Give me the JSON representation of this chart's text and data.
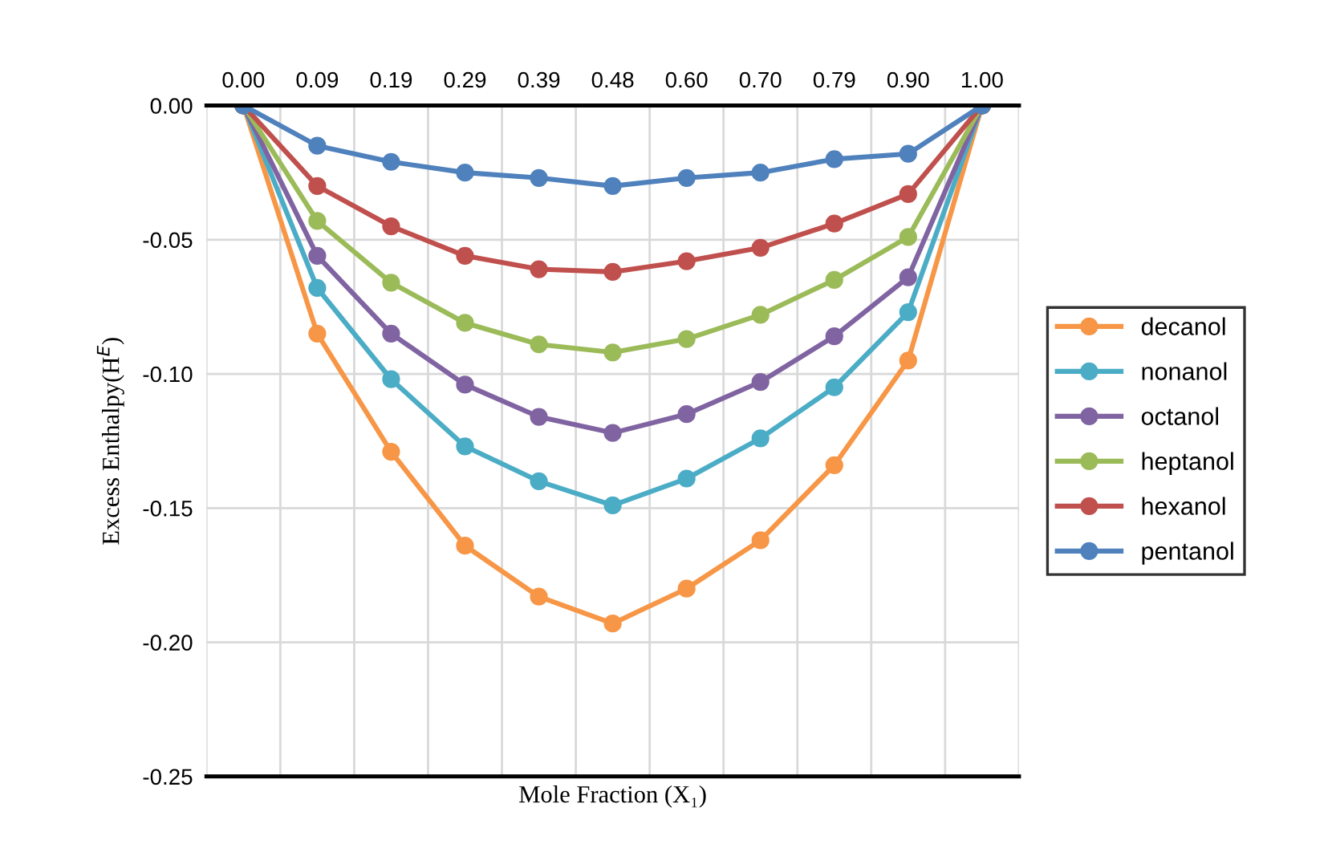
{
  "chart_data": {
    "type": "line",
    "xlabel": "Mole Fraction (X₁)",
    "ylabel": "Excess Enthalpy(H$^{E}$)",
    "categories": [
      "0.00",
      "0.09",
      "0.19",
      "0.29",
      "0.39",
      "0.48",
      "0.60",
      "0.70",
      "0.79",
      "0.90",
      "1.00"
    ],
    "ylim": [
      -0.25,
      0
    ],
    "yticks": [
      {
        "value": 0,
        "label": "0.00"
      },
      {
        "value": -0.05,
        "label": "-0.05"
      },
      {
        "value": -0.1,
        "label": "-0.10"
      },
      {
        "value": -0.15,
        "label": "-0.15"
      },
      {
        "value": -0.2,
        "label": "-0.20"
      },
      {
        "value": -0.25,
        "label": "-0.25"
      }
    ],
    "grid": true,
    "legend": "right",
    "marker": "circle",
    "line_style": "solid",
    "series": [
      {
        "name": "decanol",
        "color": "#f79646",
        "values": [
          0,
          -0.085,
          -0.129,
          -0.164,
          -0.183,
          -0.193,
          -0.18,
          -0.162,
          -0.134,
          -0.095,
          0
        ]
      },
      {
        "name": "nonanol",
        "color": "#4bacc6",
        "values": [
          0,
          -0.068,
          -0.102,
          -0.127,
          -0.14,
          -0.149,
          -0.139,
          -0.124,
          -0.105,
          -0.077,
          0
        ]
      },
      {
        "name": "octanol",
        "color": "#8064a2",
        "values": [
          0,
          -0.056,
          -0.085,
          -0.104,
          -0.116,
          -0.122,
          -0.115,
          -0.103,
          -0.086,
          -0.064,
          0
        ]
      },
      {
        "name": "heptanol",
        "color": "#9bbb59",
        "values": [
          0,
          -0.043,
          -0.066,
          -0.081,
          -0.089,
          -0.092,
          -0.087,
          -0.078,
          -0.065,
          -0.049,
          0
        ]
      },
      {
        "name": "hexanol",
        "color": "#c0504d",
        "values": [
          0,
          -0.03,
          -0.045,
          -0.056,
          -0.061,
          -0.062,
          -0.058,
          -0.053,
          -0.044,
          -0.033,
          0
        ]
      },
      {
        "name": "pentanol",
        "color": "#4f81bd",
        "values": [
          0,
          -0.015,
          -0.021,
          -0.025,
          -0.027,
          -0.03,
          -0.027,
          -0.025,
          -0.02,
          -0.018,
          0
        ]
      }
    ]
  }
}
